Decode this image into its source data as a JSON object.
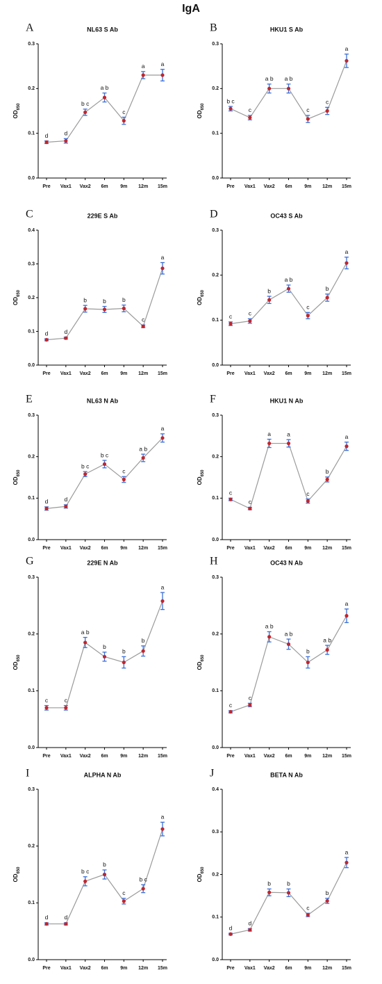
{
  "title": "IgA",
  "chart_data": [
    {
      "type": "line",
      "panel": "A",
      "title": "NL63 S Ab",
      "ylabel": {
        "text": "OD",
        "subscript": "650"
      },
      "categories": [
        "Pre",
        "Vax1",
        "Vax2",
        "6m",
        "9m",
        "12m",
        "15m"
      ],
      "values": [
        0.08,
        0.083,
        0.147,
        0.18,
        0.128,
        0.23,
        0.23
      ],
      "errors": [
        0.003,
        0.005,
        0.007,
        0.01,
        0.008,
        0.008,
        0.013
      ],
      "annotations": [
        "d",
        "d",
        "b c",
        "a b",
        "c",
        "a",
        "a"
      ],
      "ylim": [
        0,
        0.3
      ],
      "yticks": [
        {
          "value": 0,
          "label": "0.0"
        },
        0.1,
        0.2,
        0.3
      ],
      "line_color": "#9a9a9a",
      "point_color": "#c0262d",
      "error_color": "#3a6fd8"
    },
    {
      "type": "line",
      "panel": "B",
      "title": "HKU1 S Ab",
      "ylabel": {
        "text": "OD",
        "subscript": "650"
      },
      "categories": [
        "Pre",
        "Vax1",
        "Vax2",
        "6m",
        "9m",
        "12m",
        "15m"
      ],
      "values": [
        0.155,
        0.135,
        0.2,
        0.2,
        0.132,
        0.15,
        0.262
      ],
      "errors": [
        0.005,
        0.005,
        0.01,
        0.01,
        0.008,
        0.008,
        0.015
      ],
      "annotations": [
        "b c",
        "c",
        "a b",
        "a b",
        "c",
        "c",
        "a"
      ],
      "ylim": [
        0,
        0.3
      ],
      "yticks": [
        {
          "value": 0,
          "label": "0.0"
        },
        0.1,
        0.2,
        0.3
      ],
      "line_color": "#9a9a9a",
      "point_color": "#c0262d",
      "error_color": "#3a6fd8"
    },
    {
      "type": "line",
      "panel": "C",
      "title": "229E S Ab",
      "ylabel": {
        "text": "OD",
        "subscript": "650"
      },
      "categories": [
        "Pre",
        "Vax1",
        "Vax2",
        "6m",
        "9m",
        "12m",
        "15m"
      ],
      "values": [
        0.075,
        0.08,
        0.167,
        0.165,
        0.168,
        0.115,
        0.287
      ],
      "errors": [
        0.003,
        0.003,
        0.01,
        0.009,
        0.01,
        0.004,
        0.017
      ],
      "annotations": [
        "d",
        "d",
        "b",
        "b",
        "b",
        "c",
        "a"
      ],
      "ylim": [
        0,
        0.4
      ],
      "yticks": [
        {
          "value": 0,
          "label": "0.0"
        },
        0.1,
        0.2,
        0.3,
        0.4
      ],
      "line_color": "#9a9a9a",
      "point_color": "#c0262d",
      "error_color": "#3a6fd8"
    },
    {
      "type": "line",
      "panel": "D",
      "title": "OC43 S Ab",
      "ylabel": {
        "text": "OD",
        "subscript": "650"
      },
      "categories": [
        "Pre",
        "Vax1",
        "Vax2",
        "6m",
        "9m",
        "12m",
        "15m"
      ],
      "values": [
        0.092,
        0.098,
        0.145,
        0.17,
        0.11,
        0.15,
        0.227
      ],
      "errors": [
        0.004,
        0.005,
        0.008,
        0.008,
        0.007,
        0.008,
        0.013
      ],
      "annotations": [
        "c",
        "c",
        "b",
        "a b",
        "c",
        "b",
        "a"
      ],
      "ylim": [
        0,
        0.3
      ],
      "yticks": [
        {
          "value": 0,
          "label": "0.0"
        },
        0.1,
        0.2,
        0.3
      ],
      "line_color": "#9a9a9a",
      "point_color": "#c0262d",
      "error_color": "#3a6fd8"
    },
    {
      "type": "line",
      "panel": "E",
      "title": "NL63 N Ab",
      "ylabel": {
        "text": "OD",
        "subscript": "650"
      },
      "categories": [
        "Pre",
        "Vax1",
        "Vax2",
        "6m",
        "9m",
        "12m",
        "15m"
      ],
      "values": [
        0.075,
        0.08,
        0.158,
        0.182,
        0.145,
        0.197,
        0.245
      ],
      "errors": [
        0.004,
        0.004,
        0.006,
        0.009,
        0.007,
        0.009,
        0.01
      ],
      "annotations": [
        "d",
        "d",
        "b c",
        "b c",
        "c",
        "a b",
        "a"
      ],
      "ylim": [
        0,
        0.3
      ],
      "yticks": [
        {
          "value": 0,
          "label": "0.0"
        },
        0.1,
        0.2,
        0.3
      ],
      "line_color": "#9a9a9a",
      "point_color": "#c0262d",
      "error_color": "#3a6fd8"
    },
    {
      "type": "line",
      "panel": "F",
      "title": "HKU1 N Ab",
      "ylabel": {
        "text": "OD",
        "subscript": "650"
      },
      "categories": [
        "Pre",
        "Vax1",
        "Vax2",
        "6m",
        "9m",
        "12m",
        "15m"
      ],
      "values": [
        0.097,
        0.075,
        0.232,
        0.232,
        0.093,
        0.145,
        0.225
      ],
      "errors": [
        0.003,
        0.003,
        0.01,
        0.009,
        0.005,
        0.006,
        0.01
      ],
      "annotations": [
        "c",
        "c",
        "a",
        "a",
        "c",
        "b",
        "a"
      ],
      "ylim": [
        0,
        0.3
      ],
      "yticks": [
        {
          "value": 0,
          "label": "0.0"
        },
        0.1,
        0.2,
        0.3
      ],
      "line_color": "#9a9a9a",
      "point_color": "#c0262d",
      "error_color": "#3a6fd8"
    },
    {
      "type": "line",
      "panel": "G",
      "title": "229E N Ab",
      "ylabel": {
        "text": "OD",
        "subscript": "650"
      },
      "categories": [
        "Pre",
        "Vax1",
        "Vax2",
        "6m",
        "9m",
        "12m",
        "15m"
      ],
      "values": [
        0.07,
        0.07,
        0.185,
        0.16,
        0.15,
        0.17,
        0.258
      ],
      "errors": [
        0.004,
        0.004,
        0.009,
        0.008,
        0.01,
        0.009,
        0.015
      ],
      "annotations": [
        "c",
        "c",
        "a b",
        "b",
        "b",
        "b",
        "a"
      ],
      "ylim": [
        0,
        0.3
      ],
      "yticks": [
        {
          "value": 0,
          "label": "0.0"
        },
        0.1,
        0.2,
        0.3
      ],
      "line_color": "#9a9a9a",
      "point_color": "#c0262d",
      "error_color": "#3a6fd8"
    },
    {
      "type": "line",
      "panel": "H",
      "title": "OC43 N Ab",
      "ylabel": {
        "text": "OD",
        "subscript": "650"
      },
      "categories": [
        "Pre",
        "Vax1",
        "Vax2",
        "6m",
        "9m",
        "12m",
        "15m"
      ],
      "values": [
        0.063,
        0.075,
        0.195,
        0.182,
        0.15,
        0.172,
        0.232
      ],
      "errors": [
        0.002,
        0.003,
        0.009,
        0.009,
        0.01,
        0.008,
        0.012
      ],
      "annotations": [
        "c",
        "c",
        "a b",
        "a b",
        "b",
        "a b",
        "a"
      ],
      "ylim": [
        0,
        0.3
      ],
      "yticks": [
        {
          "value": 0,
          "label": "0.0"
        },
        0.1,
        0.2,
        0.3
      ],
      "line_color": "#9a9a9a",
      "point_color": "#c0262d",
      "error_color": "#3a6fd8"
    },
    {
      "type": "line",
      "panel": "I",
      "title": "ALPHA N Ab",
      "ylabel": {
        "text": "OD",
        "subscript": "650"
      },
      "categories": [
        "Pre",
        "Vax1",
        "Vax2",
        "6m",
        "9m",
        "12m",
        "15m"
      ],
      "values": [
        0.063,
        0.063,
        0.138,
        0.15,
        0.103,
        0.125,
        0.23
      ],
      "errors": [
        0.002,
        0.002,
        0.008,
        0.008,
        0.005,
        0.007,
        0.012
      ],
      "annotations": [
        "d",
        "d",
        "b c",
        "b",
        "c",
        "b c",
        "a"
      ],
      "ylim": [
        0,
        0.3
      ],
      "yticks": [
        {
          "value": 0,
          "label": "0.0"
        },
        0.1,
        0.2,
        0.3
      ],
      "line_color": "#9a9a9a",
      "point_color": "#c0262d",
      "error_color": "#3a6fd8"
    },
    {
      "type": "line",
      "panel": "J",
      "title": "BETA N Ab",
      "ylabel": {
        "text": "OD",
        "subscript": "650"
      },
      "categories": [
        "Pre",
        "Vax1",
        "Vax2",
        "6m",
        "9m",
        "12m",
        "15m"
      ],
      "values": [
        0.06,
        0.07,
        0.158,
        0.157,
        0.105,
        0.138,
        0.228
      ],
      "errors": [
        0.002,
        0.003,
        0.008,
        0.009,
        0.004,
        0.006,
        0.012
      ],
      "annotations": [
        "d",
        "d",
        "b",
        "b",
        "c",
        "b",
        "a"
      ],
      "ylim": [
        0,
        0.4
      ],
      "yticks": [
        {
          "value": 0,
          "label": "0.0"
        },
        0.1,
        0.2,
        0.3,
        0.4
      ],
      "line_color": "#9a9a9a",
      "point_color": "#c0262d",
      "error_color": "#3a6fd8"
    }
  ]
}
